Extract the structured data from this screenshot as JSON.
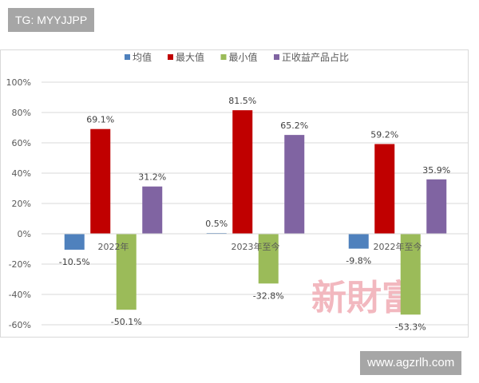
{
  "badges": {
    "tg": "TG: MYYJJPP",
    "site": "www.agzrlh.com"
  },
  "watermark": "新財富",
  "chart_data": {
    "type": "bar",
    "title": "",
    "xlabel": "",
    "ylabel": "",
    "categories": [
      "2022年",
      "2023年至今",
      "2022年至今"
    ],
    "series": [
      {
        "name": "均值",
        "color": "#4f81bd",
        "values": [
          -10.5,
          0.5,
          -9.8
        ],
        "labels": [
          "-10.5%",
          "0.5%",
          "-9.8%"
        ]
      },
      {
        "name": "最大值",
        "color": "#c00000",
        "values": [
          69.1,
          81.5,
          59.2
        ],
        "labels": [
          "69.1%",
          "81.5%",
          "59.2%"
        ]
      },
      {
        "name": "最小值",
        "color": "#9bbb59",
        "values": [
          -50.1,
          -32.8,
          -53.3
        ],
        "labels": [
          "-50.1%",
          "-32.8%",
          "-53.3%"
        ]
      },
      {
        "name": "正收益产品占比",
        "color": "#8064a2",
        "values": [
          31.2,
          65.2,
          35.9
        ],
        "labels": [
          "31.2%",
          "65.2%",
          "35.9%"
        ]
      }
    ],
    "ylim": [
      -60,
      100
    ],
    "yticks": [
      "-60%",
      "-40%",
      "-20%",
      "0%",
      "20%",
      "40%",
      "60%",
      "80%",
      "100%"
    ],
    "grid": true,
    "legend": "top-center",
    "unit": "%"
  }
}
